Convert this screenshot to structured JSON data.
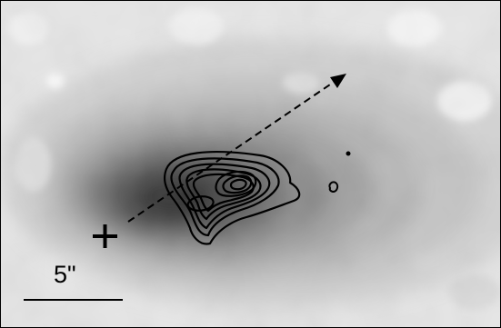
{
  "scale_bar": {
    "label": "5\""
  },
  "colors": {
    "background_light": "#eaeaea",
    "emission_dark": "#2a2a2a",
    "contours": "#000000",
    "markers": "#000000"
  },
  "figure": {
    "image_kind": "greyscale astronomical emission map with overlaid black contours",
    "markers": [
      "plus-marker",
      "dashed-direction-arrow",
      "compact-source-dot",
      "small-contour-knot"
    ]
  }
}
